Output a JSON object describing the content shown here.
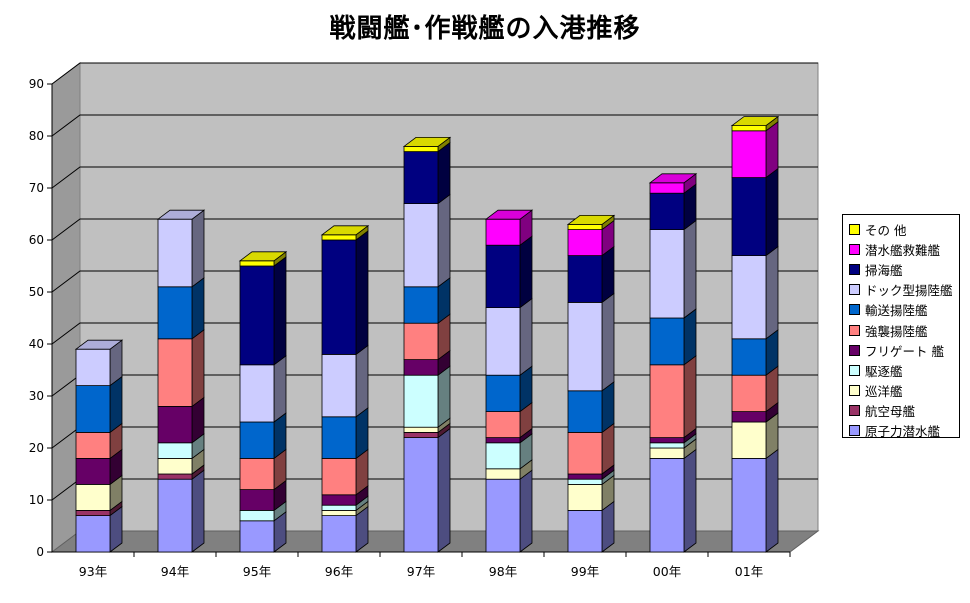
{
  "chart_data": {
    "type": "bar",
    "stacked": true,
    "three_d": true,
    "title": "戦闘艦･作戦艦の入港推移",
    "xlabel": "",
    "ylabel": "",
    "ylim": [
      0,
      90
    ],
    "yticks": [
      0,
      10,
      20,
      30,
      40,
      50,
      60,
      70,
      80,
      90
    ],
    "grid": true,
    "legend_position": "right",
    "categories": [
      "93年",
      "94年",
      "95年",
      "96年",
      "97年",
      "98年",
      "99年",
      "00年",
      "01年"
    ],
    "series": [
      {
        "name": "原子力潜水艦",
        "color": "#9999ff",
        "values": [
          7,
          14,
          6,
          7,
          22,
          14,
          8,
          18,
          18
        ]
      },
      {
        "name": "航空母艦",
        "color": "#993366",
        "values": [
          1,
          1,
          0,
          0,
          1,
          0,
          0,
          0,
          0
        ]
      },
      {
        "name": "巡洋艦",
        "color": "#ffffcc",
        "values": [
          5,
          3,
          0,
          1,
          1,
          2,
          5,
          2,
          7
        ]
      },
      {
        "name": "駆逐艦",
        "color": "#ccffff",
        "values": [
          0,
          3,
          2,
          1,
          10,
          5,
          1,
          1,
          0
        ]
      },
      {
        "name": "フリゲート 艦",
        "color": "#660066",
        "values": [
          5,
          7,
          4,
          2,
          3,
          1,
          1,
          1,
          2
        ]
      },
      {
        "name": "強襲揚陸艦",
        "color": "#ff8080",
        "values": [
          5,
          13,
          6,
          7,
          7,
          5,
          8,
          14,
          7
        ]
      },
      {
        "name": "輸送揚陸艦",
        "color": "#0066cc",
        "values": [
          9,
          10,
          7,
          8,
          7,
          7,
          8,
          9,
          7
        ]
      },
      {
        "name": "ドック型揚陸艦",
        "color": "#ccccff",
        "values": [
          7,
          13,
          11,
          12,
          16,
          13,
          17,
          17,
          16
        ]
      },
      {
        "name": "掃海艦",
        "color": "#000080",
        "values": [
          0,
          0,
          19,
          22,
          10,
          12,
          9,
          7,
          15
        ]
      },
      {
        "name": "潜水艦救難艦",
        "color": "#ff00ff",
        "values": [
          0,
          0,
          0,
          0,
          0,
          5,
          5,
          2,
          9
        ]
      },
      {
        "name": "その 他",
        "color": "#ffff00",
        "values": [
          0,
          0,
          1,
          1,
          1,
          0,
          1,
          0,
          1
        ]
      }
    ]
  }
}
